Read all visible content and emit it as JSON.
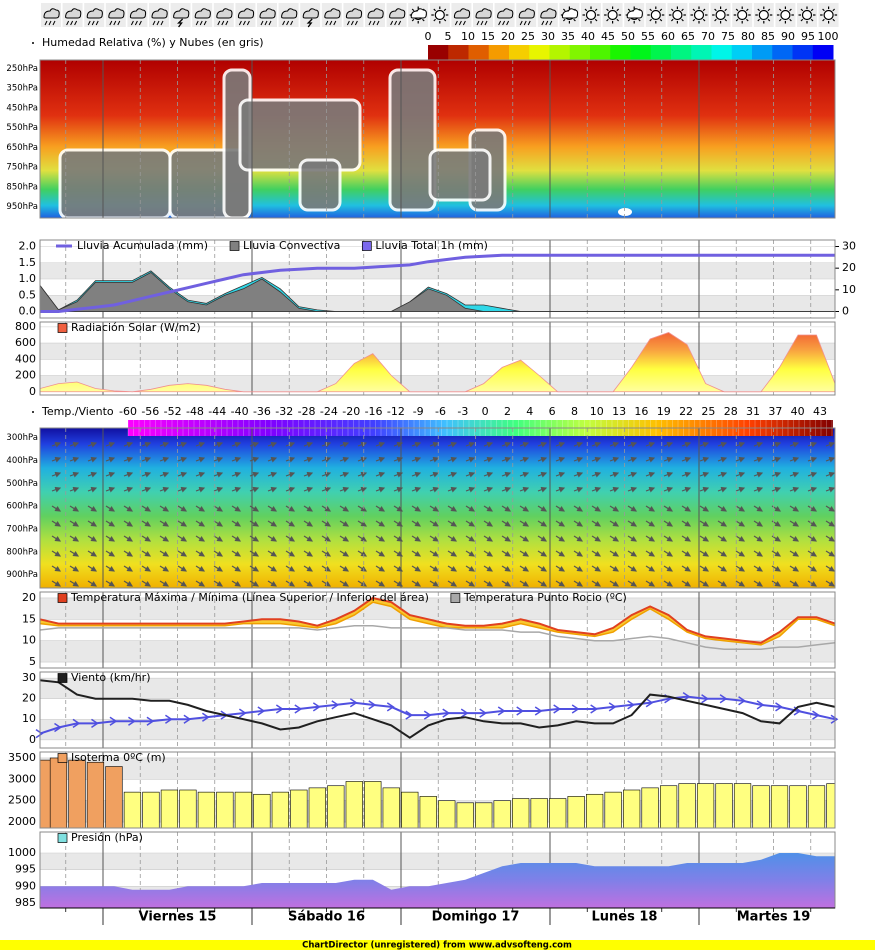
{
  "time_labels": [
    "Viernes 15",
    "Sábado 16",
    "Domingo 17",
    "Lunes 18",
    "Martes 19"
  ],
  "footer": "ChartDirector (unregistered) from www.advsofteng.com",
  "chart_data": [
    {
      "type": "heatmap",
      "title": "Humedad Relativa (%) y Nubes (en gris)",
      "colorbar_ticks": [
        0,
        5,
        10,
        15,
        20,
        25,
        30,
        35,
        40,
        45,
        50,
        55,
        60,
        65,
        70,
        75,
        80,
        85,
        90,
        95,
        100
      ],
      "y_labels": [
        "250hPa",
        "350hPa",
        "450hPa",
        "550hPa",
        "650hPa",
        "750hPa",
        "850hPa",
        "950hPa"
      ]
    },
    {
      "type": "area",
      "ylim": [
        -0.2,
        2.2
      ],
      "yticks": [
        {
          "value": 0,
          "label": "0.0"
        },
        0.5,
        {
          "value": 1,
          "label": "1.0"
        },
        1.5,
        {
          "value": 2,
          "label": "2.0"
        }
      ],
      "y2lim": [
        -3,
        33
      ],
      "y2ticks": [
        0,
        10,
        20,
        30
      ],
      "series": [
        {
          "name": "Lluvia Acumulada (mm)",
          "color": "#7060e0",
          "style": "line",
          "axis": "y2",
          "values": [
            0,
            0,
            1,
            2,
            3,
            5,
            7,
            9,
            11,
            13,
            15,
            17,
            18,
            19,
            19.5,
            20,
            20,
            20,
            20.5,
            21,
            21.5,
            23,
            24,
            25,
            25.5,
            26,
            26,
            26,
            26,
            26,
            26,
            26,
            26,
            26,
            26,
            26,
            26,
            26,
            26,
            26,
            26,
            26,
            26,
            26
          ]
        },
        {
          "name": "Lluvia Convectiva",
          "color": "#808080",
          "values": [
            0.8,
            0.05,
            0.3,
            0.9,
            0.9,
            0.9,
            1.2,
            0.7,
            0.3,
            0.2,
            0.5,
            0.7,
            1.0,
            0.6,
            0.1,
            0,
            0,
            0,
            0,
            0,
            0.3,
            0.7,
            0.5,
            0.1,
            0,
            0,
            0,
            0,
            0,
            0,
            0,
            0,
            0,
            0,
            0,
            0,
            0,
            0,
            0,
            0,
            0,
            0,
            0,
            0
          ]
        },
        {
          "name": "Lluvia Total 1h (mm)",
          "color": "#7b68ee",
          "fill": "#30d8e8",
          "values": [
            0.8,
            0.05,
            0.35,
            0.95,
            0.95,
            0.95,
            1.25,
            0.75,
            0.35,
            0.25,
            0.55,
            0.8,
            1.05,
            0.7,
            0.15,
            0.05,
            0,
            0,
            0,
            0,
            0.3,
            0.75,
            0.55,
            0.2,
            0.2,
            0.1,
            0,
            0,
            0,
            0,
            0,
            0,
            0,
            0,
            0,
            0,
            0,
            0,
            0,
            0,
            0,
            0,
            0,
            0
          ]
        }
      ]
    },
    {
      "type": "area",
      "ylim": [
        -40,
        860
      ],
      "yticks": [
        0,
        200,
        400,
        600,
        800
      ],
      "series": [
        {
          "name": "Radiación Solar (W/m2)",
          "color": "#f06040",
          "values": [
            40,
            100,
            120,
            40,
            10,
            0,
            30,
            80,
            100,
            80,
            30,
            0,
            0,
            0,
            0,
            0,
            100,
            350,
            470,
            200,
            0,
            0,
            0,
            0,
            100,
            300,
            390,
            200,
            0,
            0,
            0,
            0,
            300,
            650,
            730,
            580,
            100,
            0,
            0,
            0,
            300,
            700,
            700,
            100
          ]
        }
      ]
    },
    {
      "type": "heatmap",
      "title": "Temp./Viento",
      "colorbar_ticks": [
        -60,
        -56,
        -52,
        -48,
        -44,
        -40,
        -36,
        -32,
        -28,
        -24,
        -20,
        -16,
        -12,
        -9,
        -6,
        -3,
        0,
        2,
        4,
        6,
        8,
        10,
        13,
        16,
        19,
        22,
        25,
        28,
        31,
        37,
        40,
        43
      ],
      "y_labels": [
        "300hPa",
        "400hPa",
        "500hPa",
        "600hPa",
        "700hPa",
        "800hPa",
        "900hPa"
      ]
    },
    {
      "type": "range",
      "ylim": [
        3.6,
        21.4
      ],
      "yticks": [
        5,
        10,
        15,
        20
      ],
      "series": [
        {
          "name": "Temperatura Máxima / Mínima (Línea Superior / Inferior del área)",
          "color": "#e04020",
          "fill": "#f8c830",
          "values": [
            15,
            14,
            14,
            14,
            14,
            14,
            14,
            14,
            14,
            14,
            14,
            14.5,
            15,
            15,
            14.5,
            13.5,
            15,
            17,
            20,
            19,
            16,
            15,
            14,
            13.5,
            13.5,
            14,
            15,
            14,
            12.5,
            12,
            11.5,
            13,
            16,
            18,
            16,
            12.5,
            11,
            10.5,
            10,
            9.5,
            12,
            15.5,
            15.5,
            14
          ],
          "lower": [
            14,
            13.5,
            13.5,
            13.5,
            13.5,
            13.5,
            13.5,
            13.5,
            13.5,
            13.5,
            13.5,
            14,
            14,
            14,
            13.5,
            13,
            14,
            16,
            19,
            18,
            15,
            14,
            13,
            13,
            13,
            13,
            14,
            13,
            12,
            11.5,
            11,
            12,
            15,
            17.5,
            15,
            12,
            10.5,
            10,
            9.5,
            9,
            11,
            15,
            15,
            13.5
          ]
        },
        {
          "name": "Temperatura Punto Rocio (ºC)",
          "color": "#a8a8a8",
          "values": [
            12.5,
            13,
            13,
            13,
            13,
            13,
            13,
            13,
            13,
            13,
            13,
            13,
            13,
            13,
            13,
            12.5,
            13,
            13.5,
            13.5,
            13,
            13,
            13,
            13,
            12.5,
            12.5,
            12.5,
            12,
            12,
            11,
            10.5,
            10,
            10,
            10.5,
            11,
            10.5,
            9.5,
            8.5,
            8,
            8,
            8,
            8.5,
            8.5,
            9,
            9.5
          ]
        }
      ]
    },
    {
      "type": "line",
      "ylim": [
        -4,
        33
      ],
      "yticks": [
        0,
        10,
        20,
        30
      ],
      "series": [
        {
          "name": "Viento (km/hr)",
          "color": "#202020",
          "values": [
            29,
            28,
            22,
            20,
            20,
            20,
            19,
            19,
            17,
            14,
            12,
            10,
            8,
            5,
            6,
            9,
            11,
            13,
            10,
            7,
            1,
            7,
            10,
            11,
            9,
            8,
            8,
            6,
            7,
            9,
            8,
            8,
            12,
            22,
            21,
            19,
            17,
            15,
            13,
            9,
            8,
            16,
            18,
            16
          ]
        },
        {
          "color": "#5050e0",
          "values": [
            3,
            6,
            8,
            8,
            9,
            9,
            9,
            10,
            10,
            11,
            12,
            13,
            14,
            15,
            15,
            16,
            17,
            18,
            17,
            16,
            12,
            12,
            13,
            13,
            13,
            14,
            14,
            14,
            15,
            15,
            15,
            16,
            17,
            18,
            20,
            21,
            20,
            20,
            19,
            17,
            16,
            14,
            12,
            10
          ]
        }
      ]
    },
    {
      "type": "bar",
      "ylim": [
        1860,
        3640
      ],
      "yticks": [
        2000,
        2500,
        3000,
        3500
      ],
      "series": [
        {
          "name": "Isoterma 0ºC (m)",
          "color": "#f0a060",
          "values": [
            3450,
            3500,
            3450,
            3400,
            3300,
            null,
            null,
            null,
            null,
            null,
            null,
            null,
            null,
            null,
            null,
            null,
            null,
            null,
            null,
            null,
            null,
            null,
            null,
            null,
            null,
            null,
            null,
            null,
            null,
            null,
            null,
            null,
            null,
            null,
            null,
            null,
            null,
            null,
            null,
            null,
            null,
            null,
            null,
            null
          ]
        },
        {
          "color": "#ffff80",
          "values": [
            null,
            null,
            null,
            null,
            null,
            2700,
            2700,
            2750,
            2750,
            2700,
            2700,
            2700,
            2650,
            2700,
            2750,
            2800,
            2850,
            2950,
            2950,
            2800,
            2700,
            2600,
            2500,
            2450,
            2450,
            2500,
            2550,
            2550,
            2550,
            2600,
            2650,
            2700,
            2750,
            2800,
            2850,
            2900,
            2900,
            2900,
            2900,
            2850,
            2850,
            2850,
            2850,
            2900
          ]
        }
      ]
    },
    {
      "type": "area",
      "ylim": [
        983.5,
        1006.3
      ],
      "yticks": [
        985,
        990,
        995,
        1000
      ],
      "series": [
        {
          "name": "Presión (hPa)",
          "color": "#80e0e0",
          "values": [
            990,
            990,
            990,
            990,
            990,
            989,
            989,
            989,
            990,
            990,
            990,
            990,
            991,
            991,
            991,
            991,
            991,
            992,
            992,
            989,
            990,
            990,
            991,
            992,
            994,
            996,
            997,
            997,
            997,
            997,
            996,
            996,
            996,
            996,
            996,
            997,
            997,
            997,
            997,
            998,
            1000,
            1000,
            999,
            999
          ]
        }
      ]
    }
  ]
}
